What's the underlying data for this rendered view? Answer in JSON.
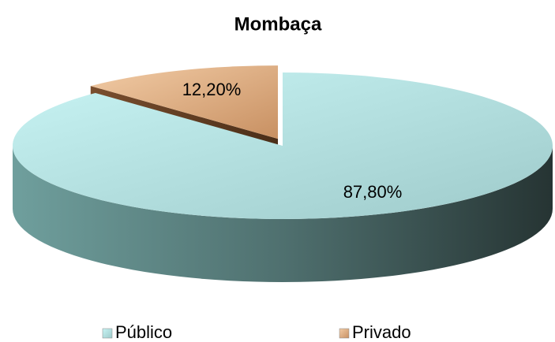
{
  "chart_data": {
    "type": "pie",
    "title": "Mombaça",
    "categories": [
      "Público",
      "Privado"
    ],
    "values": [
      87.8,
      12.2
    ],
    "value_labels": [
      "87,80%",
      "12,20%"
    ],
    "colors": [
      "#bfeeee",
      "#e8b88c"
    ],
    "legend": "bottom"
  }
}
